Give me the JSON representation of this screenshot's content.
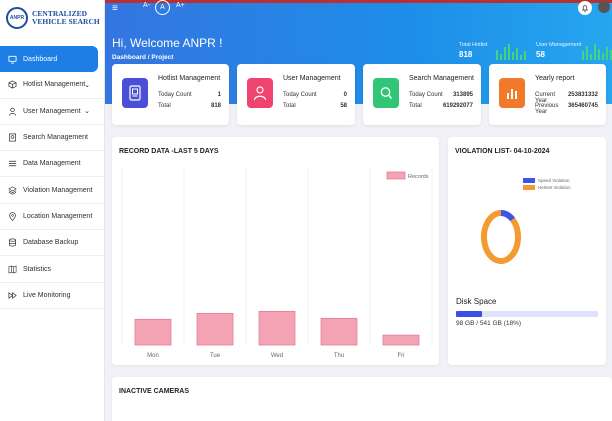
{
  "brand": {
    "logo_text": "ANPR",
    "title_line1": "CENTRALIZED",
    "title_line2": "VEHICLE SEARCH"
  },
  "sidebar": {
    "items": [
      {
        "label": "Dashboard",
        "icon": "monitor-icon",
        "active": true
      },
      {
        "label": "Hotlist Management",
        "icon": "cube-icon",
        "chevron": true
      },
      {
        "label": "User Management",
        "icon": "user-icon",
        "chevron": true
      },
      {
        "label": "Search Management",
        "icon": "search-icon"
      },
      {
        "label": "Data Management",
        "icon": "list-icon"
      },
      {
        "label": "Violation Management",
        "icon": "layers-icon"
      },
      {
        "label": "Location Management",
        "icon": "location-pin-icon"
      },
      {
        "label": "Database Backup",
        "icon": "database-icon"
      },
      {
        "label": "Statistics",
        "icon": "map-icon"
      },
      {
        "label": "Live Monitoring",
        "icon": "fast-forward-icon"
      }
    ]
  },
  "topbar": {
    "font_smaller": "A-",
    "font_reset": "A",
    "font_larger": "A+",
    "welcome": "Hi, Welcome ANPR !",
    "breadcrumb": "Dashboard  /  Project",
    "total_hotlist_label": "Total Hotlist",
    "total_hotlist_value": "818",
    "user_management_label": "User Management",
    "user_management_value": "58"
  },
  "cards": {
    "hotlist": {
      "title": "Hotlist Management",
      "row1_label": "Today Count",
      "row1_value": "1",
      "row2_label": "Total",
      "row2_value": "818",
      "color": "#4b4fd6"
    },
    "user": {
      "title": "User Management",
      "row1_label": "Today Count",
      "row1_value": "0",
      "row2_label": "Total",
      "row2_value": "58",
      "color": "#ef4470"
    },
    "search": {
      "title": "Search Management",
      "row1_label": "Today Count",
      "row1_value": "313895",
      "row2_label": "Total",
      "row2_value": "619292077",
      "color": "#31c576"
    },
    "yearly": {
      "title": "Yearly report",
      "row1_label": "Current Year",
      "row1_value": "253831332",
      "row2_label": "Previous Year",
      "row2_value": "365460745",
      "color": "#f07a2a"
    }
  },
  "records_panel": {
    "title": "RECORD DATA -LAST 5 DAYS"
  },
  "chart_data": {
    "type": "bar",
    "categories": [
      "Mon",
      "Tue",
      "Wed",
      "Thu",
      "Fri"
    ],
    "series": [
      {
        "name": "Records",
        "values": [
          26,
          32,
          34,
          27,
          10
        ]
      }
    ],
    "ylim": [
      0,
      180
    ],
    "grid": "vertical",
    "legend": "top-right",
    "colors": {
      "fill": "#f4a3b5",
      "stroke": "#e37d95"
    }
  },
  "violation_panel": {
    "title": "VIOLATION LIST- 04-10-2024",
    "legend": [
      {
        "label": "Speed Violation",
        "color": "#3b55e6"
      },
      {
        "label": "Helmet Violation",
        "color": "#f39a30"
      }
    ],
    "donut": {
      "speed_fraction": 0.12,
      "helmet_fraction": 0.88
    },
    "disk_title": "Disk Space",
    "disk_text": "98 GB / 541 GB (18%)",
    "disk_fraction": 0.18
  },
  "inactive_panel": {
    "title": "INACTIVE CAMERAS"
  }
}
